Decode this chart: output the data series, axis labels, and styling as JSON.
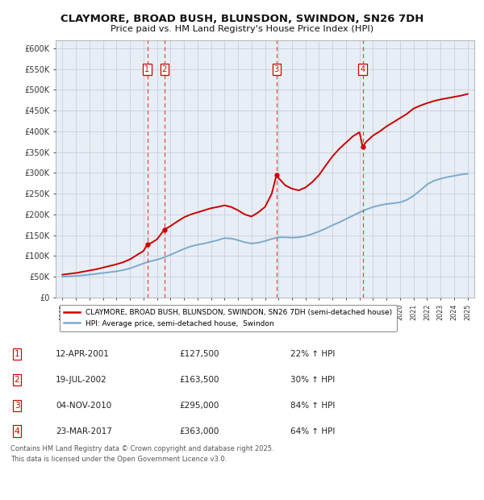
{
  "title": "CLAYMORE, BROAD BUSH, BLUNSDON, SWINDON, SN26 7DH",
  "subtitle": "Price paid vs. HM Land Registry's House Price Index (HPI)",
  "background_color": "#ffffff",
  "plot_bg_color": "#e8eef5",
  "grid_color": "#c8d0da",
  "ylim": [
    0,
    620000
  ],
  "yticks": [
    0,
    50000,
    100000,
    150000,
    200000,
    250000,
    300000,
    350000,
    400000,
    450000,
    500000,
    550000,
    600000
  ],
  "ytick_labels": [
    "£0",
    "£50K",
    "£100K",
    "£150K",
    "£200K",
    "£250K",
    "£300K",
    "£350K",
    "£400K",
    "£450K",
    "£500K",
    "£550K",
    "£600K"
  ],
  "sale_dates": [
    2001.28,
    2002.55,
    2010.85,
    2017.23
  ],
  "sale_prices": [
    127500,
    163500,
    295000,
    363000
  ],
  "sale_labels": [
    "1",
    "2",
    "3",
    "4"
  ],
  "red_line_color": "#cc0000",
  "blue_line_color": "#7aaace",
  "vline_color": "#ee3333",
  "legend_entries": [
    "CLAYMORE, BROAD BUSH, BLUNSDON, SWINDON, SN26 7DH (semi-detached house)",
    "HPI: Average price, semi-detached house,  Swindon"
  ],
  "table_rows": [
    [
      "1",
      "12-APR-2001",
      "£127,500",
      "22% ↑ HPI"
    ],
    [
      "2",
      "19-JUL-2002",
      "£163,500",
      "30% ↑ HPI"
    ],
    [
      "3",
      "04-NOV-2010",
      "£295,000",
      "84% ↑ HPI"
    ],
    [
      "4",
      "23-MAR-2017",
      "£363,000",
      "64% ↑ HPI"
    ]
  ],
  "footnote": "Contains HM Land Registry data © Crown copyright and database right 2025.\nThis data is licensed under the Open Government Licence v3.0.",
  "hpi_years": [
    1995.0,
    1995.5,
    1996.0,
    1996.5,
    1997.0,
    1997.5,
    1998.0,
    1998.5,
    1999.0,
    1999.5,
    2000.0,
    2000.5,
    2001.0,
    2001.5,
    2002.0,
    2002.5,
    2003.0,
    2003.5,
    2004.0,
    2004.5,
    2005.0,
    2005.5,
    2006.0,
    2006.5,
    2007.0,
    2007.5,
    2008.0,
    2008.5,
    2009.0,
    2009.5,
    2010.0,
    2010.5,
    2011.0,
    2011.5,
    2012.0,
    2012.5,
    2013.0,
    2013.5,
    2014.0,
    2014.5,
    2015.0,
    2015.5,
    2016.0,
    2016.5,
    2017.0,
    2017.5,
    2018.0,
    2018.5,
    2019.0,
    2019.5,
    2020.0,
    2020.5,
    2021.0,
    2021.5,
    2022.0,
    2022.5,
    2023.0,
    2023.5,
    2024.0,
    2024.5,
    2025.0
  ],
  "hpi_values": [
    50000,
    51000,
    52000,
    53500,
    55000,
    57000,
    59000,
    61000,
    63000,
    66000,
    70000,
    76000,
    82000,
    87000,
    91000,
    96000,
    103000,
    110000,
    117000,
    123000,
    127000,
    130000,
    134000,
    138000,
    143000,
    142000,
    138000,
    133000,
    130000,
    132000,
    136000,
    141000,
    145000,
    145000,
    144000,
    145000,
    148000,
    153000,
    159000,
    166000,
    174000,
    181000,
    189000,
    197000,
    205000,
    212000,
    218000,
    222000,
    225000,
    227000,
    229000,
    235000,
    245000,
    258000,
    272000,
    281000,
    286000,
    290000,
    293000,
    296000,
    298000
  ],
  "property_years": [
    1995.0,
    1995.5,
    1996.0,
    1996.5,
    1997.0,
    1997.5,
    1998.0,
    1998.5,
    1999.0,
    1999.5,
    2000.0,
    2000.5,
    2001.0,
    2001.28,
    2001.5,
    2002.0,
    2002.55,
    2002.8,
    2003.0,
    2003.5,
    2004.0,
    2004.5,
    2005.0,
    2005.5,
    2006.0,
    2006.5,
    2007.0,
    2007.5,
    2008.0,
    2008.5,
    2009.0,
    2009.5,
    2010.0,
    2010.5,
    2010.85,
    2011.0,
    2011.5,
    2012.0,
    2012.5,
    2013.0,
    2013.5,
    2014.0,
    2014.5,
    2015.0,
    2015.5,
    2016.0,
    2016.5,
    2017.0,
    2017.23,
    2017.5,
    2018.0,
    2018.5,
    2019.0,
    2019.5,
    2020.0,
    2020.5,
    2021.0,
    2021.5,
    2022.0,
    2022.5,
    2023.0,
    2023.5,
    2024.0,
    2024.5,
    2025.0
  ],
  "property_values": [
    55000,
    57000,
    59000,
    62000,
    65000,
    68000,
    72000,
    76000,
    80000,
    85000,
    92000,
    102000,
    112000,
    127500,
    130000,
    140000,
    163500,
    168000,
    172000,
    183000,
    193000,
    200000,
    205000,
    210000,
    215000,
    218000,
    222000,
    218000,
    210000,
    200000,
    195000,
    205000,
    218000,
    250000,
    295000,
    288000,
    270000,
    262000,
    258000,
    265000,
    278000,
    295000,
    318000,
    340000,
    358000,
    373000,
    388000,
    398000,
    363000,
    375000,
    390000,
    400000,
    412000,
    422000,
    432000,
    442000,
    455000,
    462000,
    468000,
    473000,
    477000,
    480000,
    483000,
    486000,
    490000
  ]
}
